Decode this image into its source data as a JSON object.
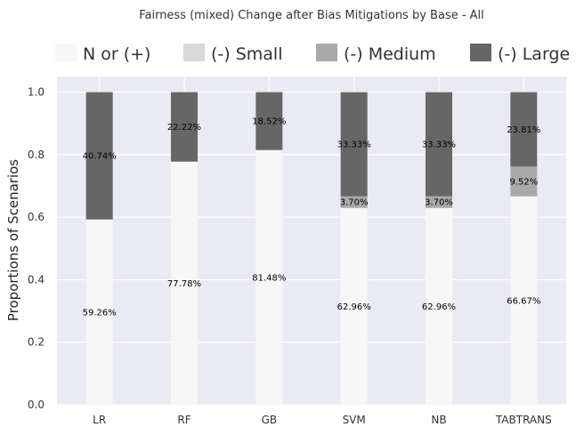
{
  "chart_data": {
    "type": "bar",
    "stacked": true,
    "title": "Fairness (mixed) Change after Bias Mitigations by Base - All",
    "ylabel": "Proportions of Scenarios",
    "xlabel": "",
    "ylim": [
      0,
      1.05
    ],
    "yticks": [
      "0.0",
      "0.2",
      "0.4",
      "0.6",
      "0.8",
      "1.0"
    ],
    "categories": [
      "LR",
      "RF",
      "GB",
      "SVM",
      "NB",
      "TABTRANS"
    ],
    "legend_position": "top",
    "grid": true,
    "series": [
      {
        "name": "N or (+)",
        "color": "#f7f7f7",
        "values": [
          0.5926,
          0.7778,
          0.8148,
          0.6296,
          0.6296,
          0.6667
        ],
        "labels": [
          "59.26%",
          "77.78%",
          "81.48%",
          "62.96%",
          "62.96%",
          "66.67%"
        ]
      },
      {
        "name": "(-) Small",
        "color": "#d9d9d9",
        "values": [
          0,
          0,
          0,
          0,
          0,
          0
        ],
        "labels": [
          "",
          "",
          "",
          "",
          "",
          ""
        ]
      },
      {
        "name": "(-) Medium",
        "color": "#a9a9a9",
        "values": [
          0,
          0,
          0,
          0.037,
          0.037,
          0.0952
        ],
        "labels": [
          "",
          "",
          "",
          "3.70%",
          "3.70%",
          "9.52%"
        ]
      },
      {
        "name": "(-) Large",
        "color": "#666666",
        "values": [
          0.4074,
          0.2222,
          0.1852,
          0.3333,
          0.3333,
          0.2381
        ],
        "labels": [
          "40.74%",
          "22.22%",
          "18.52%",
          "33.33%",
          "33.33%",
          "23.81%"
        ]
      }
    ]
  }
}
